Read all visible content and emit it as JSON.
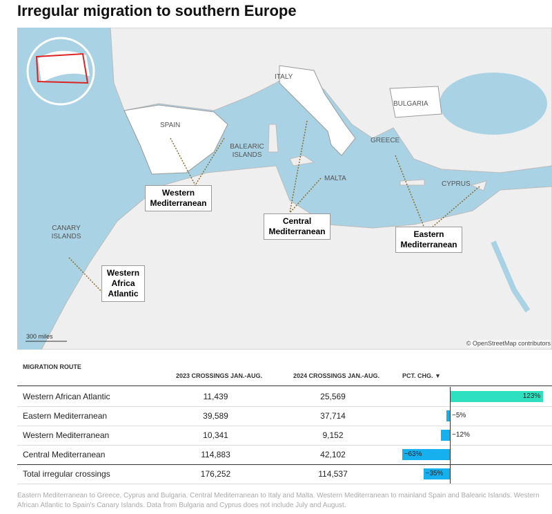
{
  "header": {
    "title": "Irregular migration to southern Europe"
  },
  "map": {
    "labels": [
      "ITALY",
      "BULGARIA",
      "SPAIN",
      "BALEARIC ISLANDS",
      "GREECE",
      "MALTA",
      "CYPRUS",
      "CANARY ISLANDS"
    ],
    "routes": [
      "Western Mediterranean",
      "Central Mediterranean",
      "Eastern Mediterranean",
      "Western Africa Atlantic"
    ],
    "scale": "300 miles",
    "attribution": "© OpenStreetMap contributors"
  },
  "table": {
    "columns": [
      "MIGRATION ROUTE",
      "2023 CROSSINGS JAN.-AUG.",
      "2024 CROSSINGS JAN.-AUG.",
      "PCT. CHG. ▼"
    ],
    "rows": [
      [
        "Western African Atlantic",
        "11,439",
        "25,569",
        {
          "value": 123,
          "label": "123%"
        }
      ],
      [
        "Eastern Mediterranean",
        "39,589",
        "37,714",
        {
          "value": -5,
          "label": "−5%"
        }
      ],
      [
        "Western Mediterranean",
        "10,341",
        "9,152",
        {
          "value": -12,
          "label": "−12%"
        }
      ],
      [
        "Central Mediterranean",
        "114,883",
        "42,102",
        {
          "value": -63,
          "label": "−63%"
        }
      ],
      [
        "Total irregular crossings",
        "176,252",
        "114,537",
        {
          "value": -35,
          "label": "−35%"
        }
      ]
    ],
    "note": "Eastern Mediterranean to Greece, Cyprus and Bulgaria. Central Mediterranean to Italy and Malta. Western Mediterranean to mainland Spain and Balearic Islands. Western African Atlantic to Spain's Canary Islands. Data from Bulgaria and Cyprus does not include July and August."
  }
}
